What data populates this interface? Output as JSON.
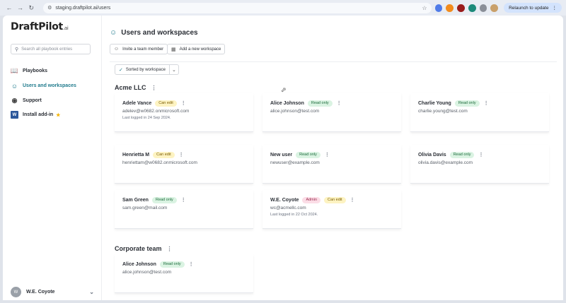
{
  "browser": {
    "url": "staging.draftpilot.ai/users",
    "relaunch_label": "Relaunch to update"
  },
  "sidebar": {
    "logo": "DraftPilot",
    "logo_suffix": ".ai",
    "search_placeholder": "Search all playbook entries",
    "items": [
      {
        "label": "Playbooks",
        "icon": "book-icon"
      },
      {
        "label": "Users and workspaces",
        "icon": "users-icon"
      },
      {
        "label": "Support",
        "icon": "support-icon"
      },
      {
        "label": "Install add-in",
        "icon": "word-icon"
      }
    ],
    "user": {
      "initial": "W",
      "name": "W.E. Coyote"
    }
  },
  "main": {
    "title": "Users and workspaces",
    "invite_label": "Invite a team member",
    "add_workspace_label": "Add a new workspace",
    "sort_label": "Sorted by workspace"
  },
  "workspaces": [
    {
      "name": "Acme LLC",
      "members": [
        {
          "name": "Adele Vance",
          "badges": [
            "Can edit"
          ],
          "email": "adelev@w0682.onmicrosoft.com",
          "last": "Last logged in 24 Sep 2024."
        },
        {
          "name": "Alice Johnson",
          "badges": [
            "Read only"
          ],
          "email": "alice.johnson@test.com",
          "last": ""
        },
        {
          "name": "Charlie Young",
          "badges": [
            "Read only"
          ],
          "email": "charlie.young@test.com",
          "last": ""
        },
        {
          "name": "Henrietta M",
          "badges": [
            "Can edit"
          ],
          "email": "henriettam@w0682.onmicrosoft.com",
          "last": ""
        },
        {
          "name": "New user",
          "badges": [
            "Read only"
          ],
          "email": "newuser@example.com",
          "last": ""
        },
        {
          "name": "Olivia Davis",
          "badges": [
            "Read only"
          ],
          "email": "olivia.davis@example.com",
          "last": ""
        },
        {
          "name": "Sam Green",
          "badges": [
            "Read only"
          ],
          "email": "sam.green@mail.com",
          "last": ""
        },
        {
          "name": "W.E. Coyote",
          "badges": [
            "Admin",
            "Can edit"
          ],
          "email": "wc@acmellc.com",
          "last": "Last logged in 22 Oct 2024."
        }
      ]
    },
    {
      "name": "Corporate team",
      "members": [
        {
          "name": "Alice Johnson",
          "badges": [
            "Read only"
          ],
          "email": "alice.johnson@test.com",
          "last": ""
        }
      ]
    }
  ],
  "colors": {
    "accent": "#1f7a8c",
    "can_edit": "#fdf3c2",
    "read_only": "#daf3e2",
    "admin": "#fbdde6"
  }
}
